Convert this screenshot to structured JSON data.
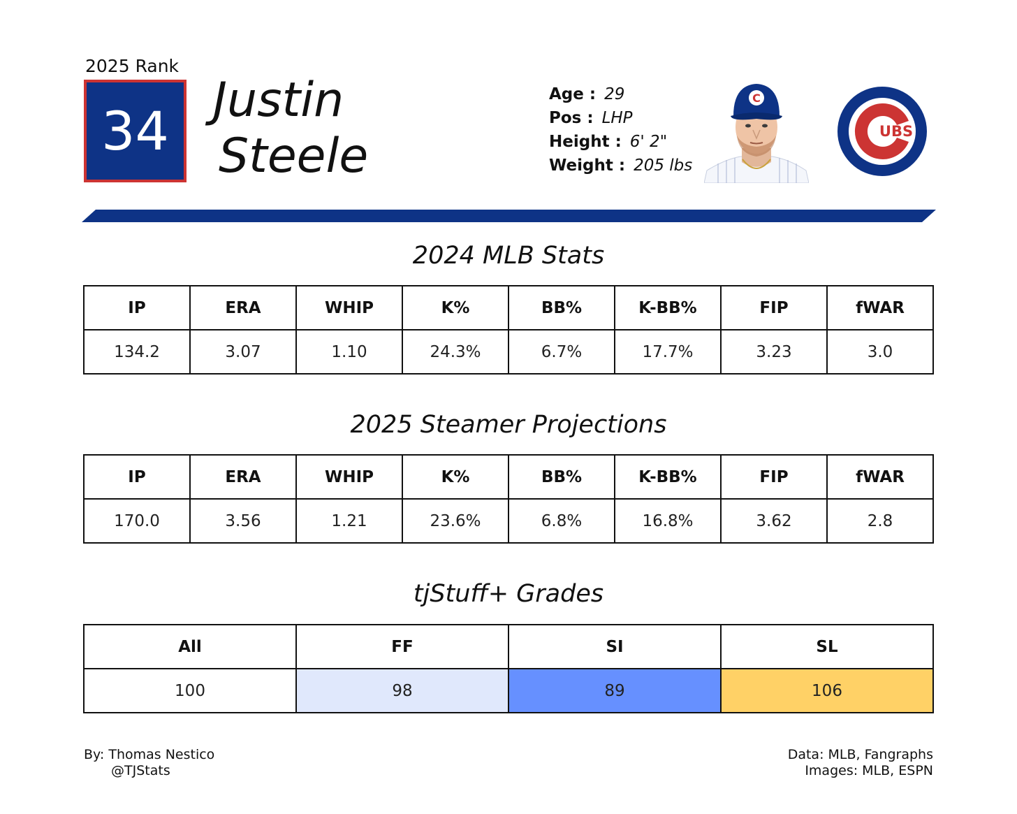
{
  "rank": {
    "label": "2025 Rank",
    "value": "34"
  },
  "player": {
    "first_name": "Justin",
    "last_name": "Steele"
  },
  "bio": [
    {
      "key": "Age :",
      "value": "29"
    },
    {
      "key": "Pos :",
      "value": "LHP"
    },
    {
      "key": "Height :",
      "value": "6' 2\""
    },
    {
      "key": "Weight :",
      "value": "205 lbs"
    }
  ],
  "team": {
    "logo_text": "UBS",
    "primary_color": "#0e3386",
    "accent_color": "#cc3433"
  },
  "stats_2024": {
    "title": "2024 MLB Stats",
    "headers": [
      "IP",
      "ERA",
      "WHIP",
      "K%",
      "BB%",
      "K-BB%",
      "FIP",
      "fWAR"
    ],
    "values": [
      "134.2",
      "3.07",
      "1.10",
      "24.3%",
      "6.7%",
      "17.7%",
      "3.23",
      "3.0"
    ]
  },
  "projections_2025": {
    "title": "2025 Steamer Projections",
    "headers": [
      "IP",
      "ERA",
      "WHIP",
      "K%",
      "BB%",
      "K-BB%",
      "FIP",
      "fWAR"
    ],
    "values": [
      "170.0",
      "3.56",
      "1.21",
      "23.6%",
      "6.8%",
      "16.8%",
      "3.62",
      "2.8"
    ]
  },
  "grades": {
    "title": "tjStuff+ Grades",
    "headers": [
      "All",
      "FF",
      "SI",
      "SL"
    ],
    "values": [
      "100",
      "98",
      "89",
      "106"
    ],
    "cell_colors": [
      "#ffffff",
      "#e0e8fc",
      "#6690ff",
      "#ffd166"
    ]
  },
  "credits": {
    "author": "By: Thomas Nestico",
    "handle": "@TJStats",
    "data": "Data: MLB, Fangraphs",
    "images": "Images: MLB, ESPN"
  }
}
